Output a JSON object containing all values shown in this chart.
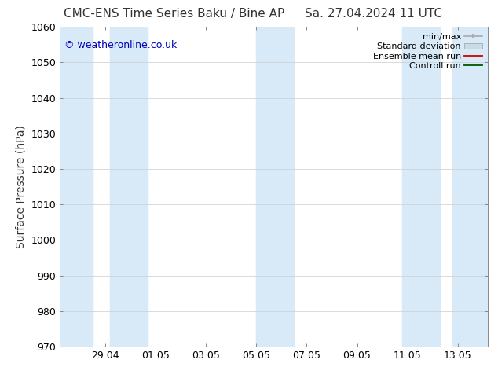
{
  "title_left": "CMC-ENS Time Series Baku / Bine AP",
  "title_right": "Sa. 27.04.2024 11 UTC",
  "ylabel": "Surface Pressure (hPa)",
  "ylim": [
    970,
    1060
  ],
  "yticks": [
    970,
    980,
    990,
    1000,
    1010,
    1020,
    1030,
    1040,
    1050,
    1060
  ],
  "xlabel_ticks": [
    "29.04",
    "01.05",
    "03.05",
    "05.05",
    "07.05",
    "09.05",
    "11.05",
    "13.05"
  ],
  "xlim_days": [
    0,
    17
  ],
  "shaded_bands": [
    {
      "x_start": 0.0,
      "x_end": 1.3
    },
    {
      "x_start": 2.0,
      "x_end": 3.5
    },
    {
      "x_start": 7.8,
      "x_end": 9.3
    },
    {
      "x_start": 13.6,
      "x_end": 15.1
    },
    {
      "x_start": 15.6,
      "x_end": 17.0
    }
  ],
  "band_color": "#d8eaf8",
  "band_alpha": 1.0,
  "watermark_text": "© weatheronline.co.uk",
  "watermark_color": "#0000bb",
  "legend_items": [
    {
      "label": "min/max",
      "color": "#aaaaaa"
    },
    {
      "label": "Standard deviation",
      "color": "#c8dce8"
    },
    {
      "label": "Ensemble mean run",
      "color": "#cc0000"
    },
    {
      "label": "Controll run",
      "color": "#005500"
    }
  ],
  "bg_color": "#ffffff",
  "grid_color": "#cccccc",
  "title_fontsize": 11,
  "tick_fontsize": 9,
  "ylabel_fontsize": 10,
  "legend_fontsize": 8,
  "x_tick_days": [
    1.8,
    3.8,
    5.8,
    7.8,
    9.8,
    11.8,
    13.8,
    15.8
  ]
}
